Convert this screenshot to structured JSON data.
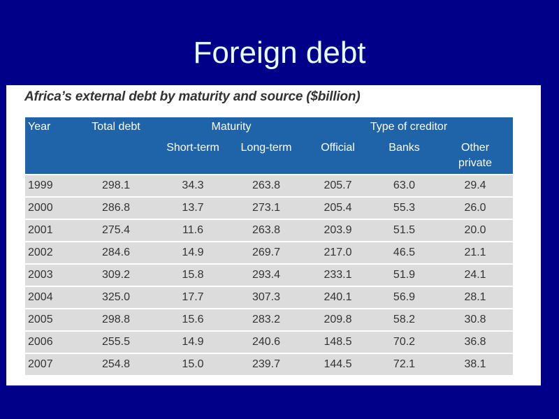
{
  "slide": {
    "title": "Foreign debt"
  },
  "table": {
    "caption": "Africa’s external debt by maturity and source ($billion)",
    "header_row1": {
      "year": "Year",
      "total_debt": "Total debt",
      "maturity": "Maturity",
      "type_of_creditor": "Type of creditor"
    },
    "header_row2": {
      "short_term": "Short-term",
      "long_term": "Long-term",
      "official": "Official",
      "banks": "Banks",
      "other_private": "Other private"
    },
    "rows": [
      [
        "1999",
        "298.1",
        "34.3",
        "263.8",
        "205.7",
        "63.0",
        "29.4"
      ],
      [
        "2000",
        "286.8",
        "13.7",
        "273.1",
        "205.4",
        "55.3",
        "26.0"
      ],
      [
        "2001",
        "275.4",
        "11.6",
        "263.8",
        "203.9",
        "51.5",
        "20.0"
      ],
      [
        "2002",
        "284.6",
        "14.9",
        "269.7",
        "217.0",
        "46.5",
        "21.1"
      ],
      [
        "2003",
        "309.2",
        "15.8",
        "293.4",
        "233.1",
        "51.9",
        "24.1"
      ],
      [
        "2004",
        "325.0",
        "17.7",
        "307.3",
        "240.1",
        "56.9",
        "28.1"
      ],
      [
        "2005",
        "298.8",
        "15.6",
        "283.2",
        "209.8",
        "58.2",
        "30.8"
      ],
      [
        "2006",
        "255.5",
        "14.9",
        "240.6",
        "148.5",
        "70.2",
        "36.8"
      ],
      [
        "2007",
        "254.8",
        "15.0",
        "239.7",
        "144.5",
        "72.1",
        "38.1"
      ]
    ]
  },
  "colors": {
    "slide_background": "#000088",
    "title_text": "#e8fbff",
    "header_background": "#1f63a8",
    "row_background": "#dcdcdc"
  }
}
